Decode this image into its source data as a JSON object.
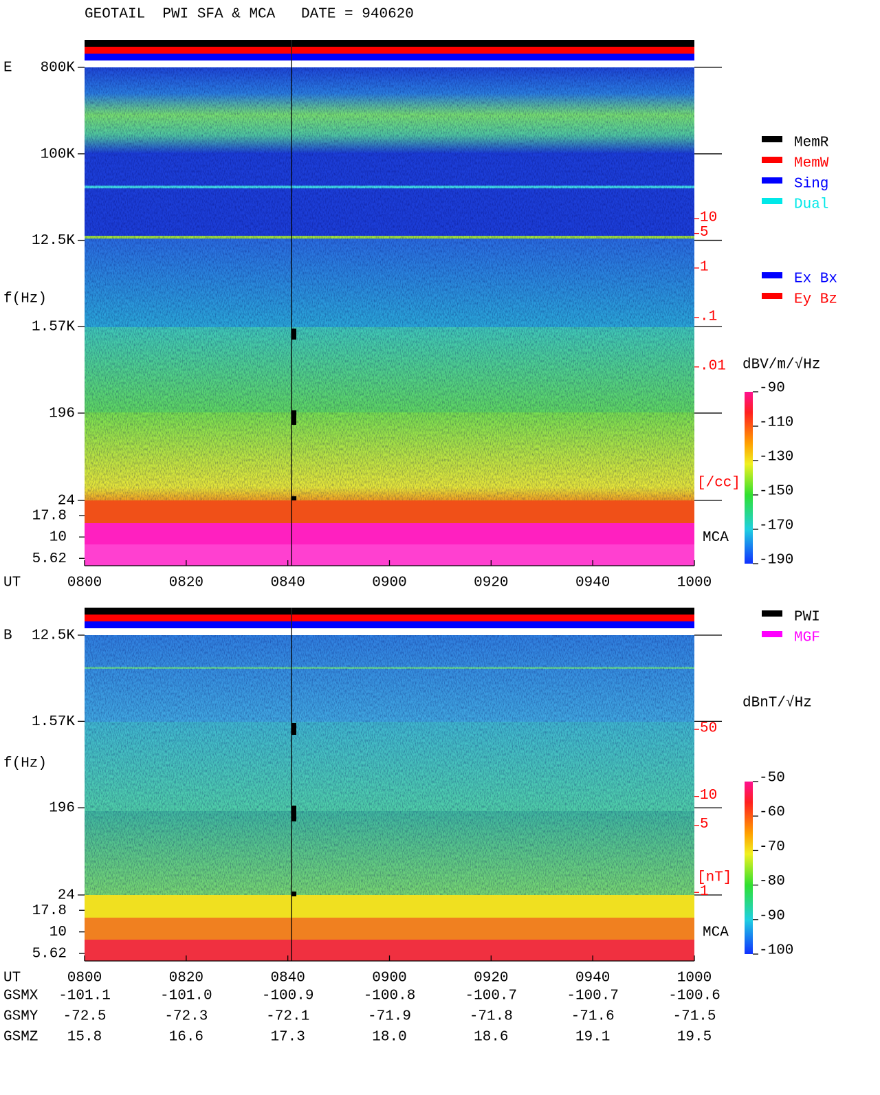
{
  "title": "GEOTAIL  PWI SFA & MCA   DATE = 940620",
  "panels": [
    {
      "label": "E",
      "ylabel": "f(Hz)",
      "xlabel": "UT",
      "scale": "log",
      "ylim": [
        24,
        800000
      ],
      "yticks": [
        {
          "value": 800000,
          "label": "800K"
        },
        {
          "value": 100000,
          "label": "100K"
        },
        {
          "value": 12500,
          "label": "12.5K"
        },
        {
          "value": 1570,
          "label": "1.57K"
        },
        196,
        24
      ],
      "mca_label": "MCA",
      "mca_ylim": [
        4.12,
        24
      ],
      "mca_ticks": [
        17.8,
        10,
        5.62
      ],
      "y2color": "#ff0000",
      "y2lim": [
        2e-05,
        11400
      ],
      "y2ticks": [
        10,
        5,
        1,
        {
          "value": 0.1,
          "label": ".1"
        },
        {
          "value": 0.01,
          "label": ".01"
        }
      ],
      "y2label": "[/cc]",
      "xticks": [
        "0800",
        "0820",
        "0840",
        "0900",
        "0920",
        "0940",
        "1000"
      ],
      "legend": [
        {
          "name": "MemR",
          "color": "#000000"
        },
        {
          "name": "MemW",
          "color": "#ff0000"
        },
        {
          "name": "Sing",
          "color": "#0000ff"
        },
        {
          "name": "Dual",
          "color": "#00e8e8"
        }
      ],
      "legend2": [
        {
          "name": "Ex Bx",
          "color": "#0000ff"
        },
        {
          "name": "Ey Bz",
          "color": "#ff0000"
        }
      ],
      "colorbar": {
        "title": "dBV/m/√Hz",
        "lim": [
          -190,
          -90
        ],
        "ticks": [
          -90,
          -110,
          -130,
          -150,
          -170,
          -190
        ]
      }
    },
    {
      "label": "B",
      "ylabel": "f(Hz)",
      "xlabel": "UT",
      "scale": "log",
      "ylim": [
        24,
        12500
      ],
      "yticks": [
        {
          "value": 12500,
          "label": "12.5K"
        },
        {
          "value": 1570,
          "label": "1.57K"
        },
        196,
        24
      ],
      "mca_label": "MCA",
      "mca_ylim": [
        4.12,
        24
      ],
      "mca_ticks": [
        17.8,
        10,
        5.62
      ],
      "y2color": "#ff0000",
      "y2lim": [
        0.94,
        480
      ],
      "y2ticks": [
        50,
        10,
        5,
        1
      ],
      "y2label": "[nT]",
      "xticks": [
        "0800",
        "0820",
        "0840",
        "0900",
        "0920",
        "0940",
        "1000"
      ],
      "legend": [
        {
          "name": "PWI",
          "color": "#000000"
        },
        {
          "name": "MGF",
          "color": "#ff00ff"
        }
      ],
      "legend2": [],
      "colorbar": {
        "title": "dBnT/√Hz",
        "lim": [
          -100,
          -50
        ],
        "ticks": [
          -50,
          -60,
          -70,
          -80,
          -90,
          -100
        ]
      }
    }
  ],
  "orbit": [
    {
      "name": "GSMX",
      "values": [
        "-101.1",
        "-101.0",
        "-100.9",
        "-100.8",
        "-100.7",
        "-100.7",
        "-100.6"
      ]
    },
    {
      "name": "GSMY",
      "values": [
        "-72.5",
        "-72.3",
        "-72.1",
        "-71.9",
        "-71.8",
        "-71.6",
        "-71.5"
      ]
    },
    {
      "name": "GSMZ",
      "values": [
        "15.8",
        "16.6",
        "17.3",
        "18.0",
        "18.6",
        "19.1",
        "19.5"
      ]
    }
  ]
}
